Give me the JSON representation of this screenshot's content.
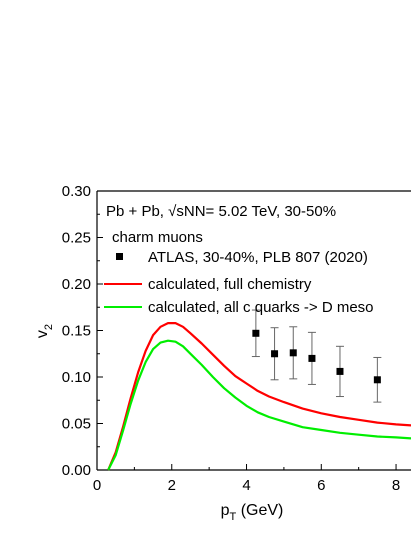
{
  "chart_data": {
    "type": "line",
    "title": "",
    "xlabel_main": "p",
    "xlabel_sub": "T",
    "xlabel_rest": " (GeV)",
    "ylabel_main": "v",
    "ylabel_sub": "2",
    "xlim": [
      0,
      8.4
    ],
    "ylim": [
      0,
      0.3
    ],
    "xticks": [
      0,
      2,
      4,
      6,
      8
    ],
    "xtick_labels": [
      "0",
      "2",
      "4",
      "6",
      "8"
    ],
    "yticks": [
      0.0,
      0.05,
      0.1,
      0.15,
      0.2,
      0.25,
      0.3
    ],
    "ytick_labels": [
      "0.00",
      "0.05",
      "0.10",
      "0.15",
      "0.20",
      "0.25",
      "0.30"
    ],
    "grid": false,
    "legend_placement": "top-left",
    "annotations": {
      "system_label": "Pb + Pb, √sNN= 5.02 TeV, 30-50%",
      "particle_label": "charm muons"
    },
    "series": [
      {
        "name": "ATLAS, 30-40%, PLB 807 (2020)",
        "kind": "points",
        "color": "#000000",
        "x": [
          4.25,
          4.75,
          5.25,
          5.75,
          6.5,
          7.5
        ],
        "y": [
          0.147,
          0.125,
          0.126,
          0.12,
          0.106,
          0.097
        ],
        "yerr": [
          0.025,
          0.028,
          0.028,
          0.028,
          0.027,
          0.024
        ]
      },
      {
        "name": "calculated, full chemistry",
        "kind": "line",
        "color": "#ff0000",
        "x": [
          0.3,
          0.5,
          0.7,
          0.9,
          1.1,
          1.3,
          1.5,
          1.7,
          1.9,
          2.1,
          2.3,
          2.5,
          2.8,
          3.1,
          3.4,
          3.7,
          4.0,
          4.3,
          4.6,
          5.0,
          5.5,
          6.0,
          6.5,
          7.0,
          7.5,
          8.0,
          8.4
        ],
        "y": [
          0.0,
          0.019,
          0.047,
          0.077,
          0.105,
          0.128,
          0.145,
          0.154,
          0.158,
          0.158,
          0.154,
          0.147,
          0.136,
          0.124,
          0.112,
          0.101,
          0.093,
          0.085,
          0.079,
          0.073,
          0.066,
          0.061,
          0.057,
          0.054,
          0.051,
          0.049,
          0.048
        ]
      },
      {
        "name": "calculated, all c quarks -> D meso",
        "kind": "line",
        "color": "#00ee00",
        "x": [
          0.3,
          0.5,
          0.7,
          0.9,
          1.1,
          1.3,
          1.5,
          1.7,
          1.9,
          2.1,
          2.3,
          2.5,
          2.8,
          3.1,
          3.4,
          3.7,
          4.0,
          4.3,
          4.6,
          5.0,
          5.5,
          6.0,
          6.5,
          7.0,
          7.5,
          8.0,
          8.4
        ],
        "y": [
          0.0,
          0.016,
          0.043,
          0.071,
          0.096,
          0.116,
          0.13,
          0.137,
          0.139,
          0.138,
          0.133,
          0.125,
          0.113,
          0.1,
          0.088,
          0.078,
          0.069,
          0.062,
          0.057,
          0.052,
          0.046,
          0.043,
          0.04,
          0.038,
          0.036,
          0.035,
          0.034
        ]
      }
    ]
  }
}
